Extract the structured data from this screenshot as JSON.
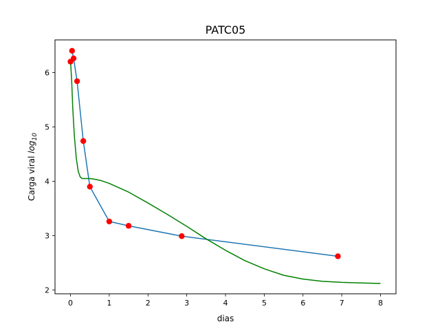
{
  "chart_data": {
    "type": "scatter",
    "title": "PATC05",
    "xlabel": "dias",
    "ylabel_main": "Carga viral ",
    "ylabel_log": "log",
    "ylabel_sub": "10",
    "xlim": [
      -0.4,
      8.4
    ],
    "ylim": [
      1.93,
      6.6
    ],
    "x_ticks": [
      0,
      1,
      2,
      3,
      4,
      5,
      6,
      7,
      8
    ],
    "y_ticks": [
      2,
      3,
      4,
      5,
      6
    ],
    "grid": false,
    "series": [
      {
        "kind": "points",
        "color": "#ff0000",
        "x": [
          0.0,
          0.04,
          0.08,
          0.17,
          0.33,
          0.5,
          1.0,
          1.5,
          2.87,
          6.9
        ],
        "y": [
          6.2,
          6.4,
          6.26,
          5.84,
          4.74,
          3.9,
          3.26,
          3.18,
          2.99,
          2.62
        ]
      },
      {
        "kind": "connecting-line",
        "color": "#1f77b4",
        "x": [
          0.04,
          0.08,
          0.17,
          0.33,
          0.5,
          1.0,
          1.5,
          2.87,
          6.9
        ],
        "y": [
          6.4,
          6.26,
          5.84,
          4.74,
          3.9,
          3.26,
          3.18,
          2.99,
          2.62
        ]
      },
      {
        "kind": "fitted-curve",
        "color": "#008000",
        "x": [
          0.0,
          0.03,
          0.06,
          0.1,
          0.15,
          0.2,
          0.25,
          0.3,
          0.35,
          0.4,
          0.5,
          0.6,
          0.8,
          1.0,
          1.5,
          2.0,
          2.5,
          3.0,
          3.5,
          4.0,
          4.5,
          5.0,
          5.5,
          6.0,
          6.5,
          7.0,
          7.5,
          8.0
        ],
        "y": [
          6.22,
          5.85,
          5.32,
          4.83,
          4.42,
          4.18,
          4.08,
          4.05,
          4.05,
          4.05,
          4.05,
          4.04,
          4.01,
          3.96,
          3.8,
          3.6,
          3.39,
          3.17,
          2.94,
          2.73,
          2.54,
          2.39,
          2.27,
          2.2,
          2.16,
          2.14,
          2.13,
          2.12
        ]
      }
    ]
  }
}
